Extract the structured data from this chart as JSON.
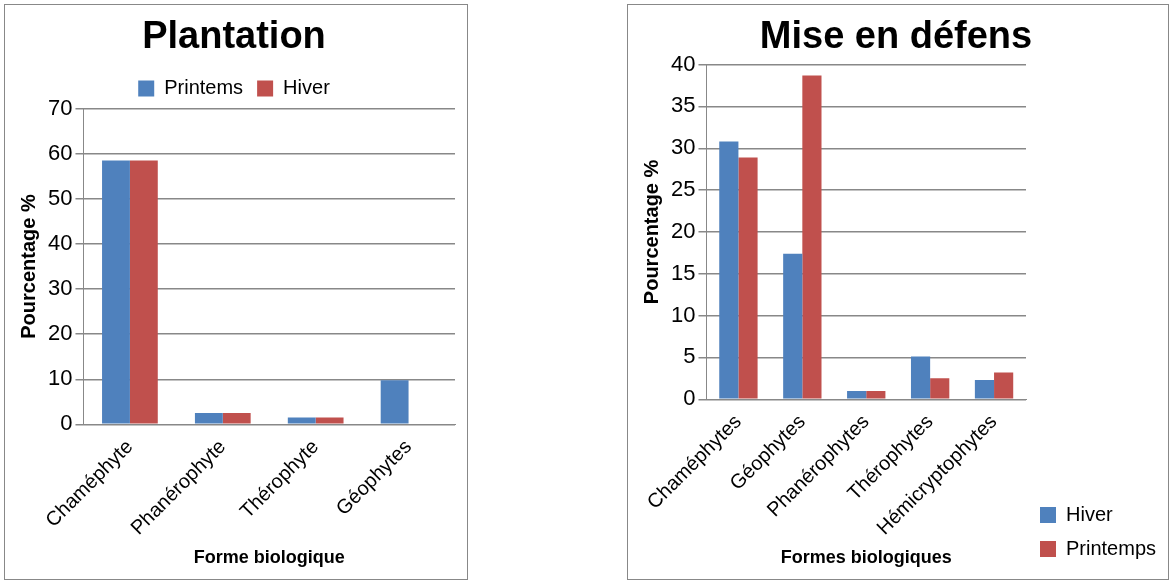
{
  "chart_data": [
    {
      "type": "bar",
      "title": "Plantation",
      "xlabel": "Forme biologique",
      "ylabel": "Pourcentage %",
      "categories": [
        "Chaméphyte",
        "Phanérophyte",
        "Thérophyte",
        "Géophytes"
      ],
      "series": [
        {
          "name": "Printems",
          "color": "#4f81bd",
          "values": [
            58.5,
            2.5,
            1.5,
            9.8
          ]
        },
        {
          "name": "Hiver",
          "color": "#c0504d",
          "values": [
            58.5,
            2.5,
            1.5,
            null
          ]
        }
      ],
      "ylim": [
        0,
        70
      ],
      "yticks": [
        0,
        10,
        20,
        30,
        40,
        50,
        60,
        70
      ],
      "grid": "y",
      "legend": "top"
    },
    {
      "type": "bar",
      "title": "Mise en défens",
      "xlabel": "Formes biologiques",
      "ylabel": "Pourcentage %",
      "categories": [
        "Chaméphytes",
        "Géophytes",
        "Phanérophytes",
        "Thérophytes",
        "Hémicryptophytes"
      ],
      "series": [
        {
          "name": "Hiver",
          "color": "#4f81bd",
          "values": [
            30.8,
            17.4,
            1.0,
            5.1,
            2.3
          ]
        },
        {
          "name": "Printemps",
          "color": "#c0504d",
          "values": [
            28.9,
            38.7,
            1.0,
            2.5,
            3.2
          ]
        }
      ],
      "ylim": [
        0,
        40
      ],
      "yticks": [
        0,
        5,
        10,
        15,
        20,
        25,
        30,
        35,
        40
      ],
      "grid": "y",
      "legend": "bottom right"
    }
  ]
}
